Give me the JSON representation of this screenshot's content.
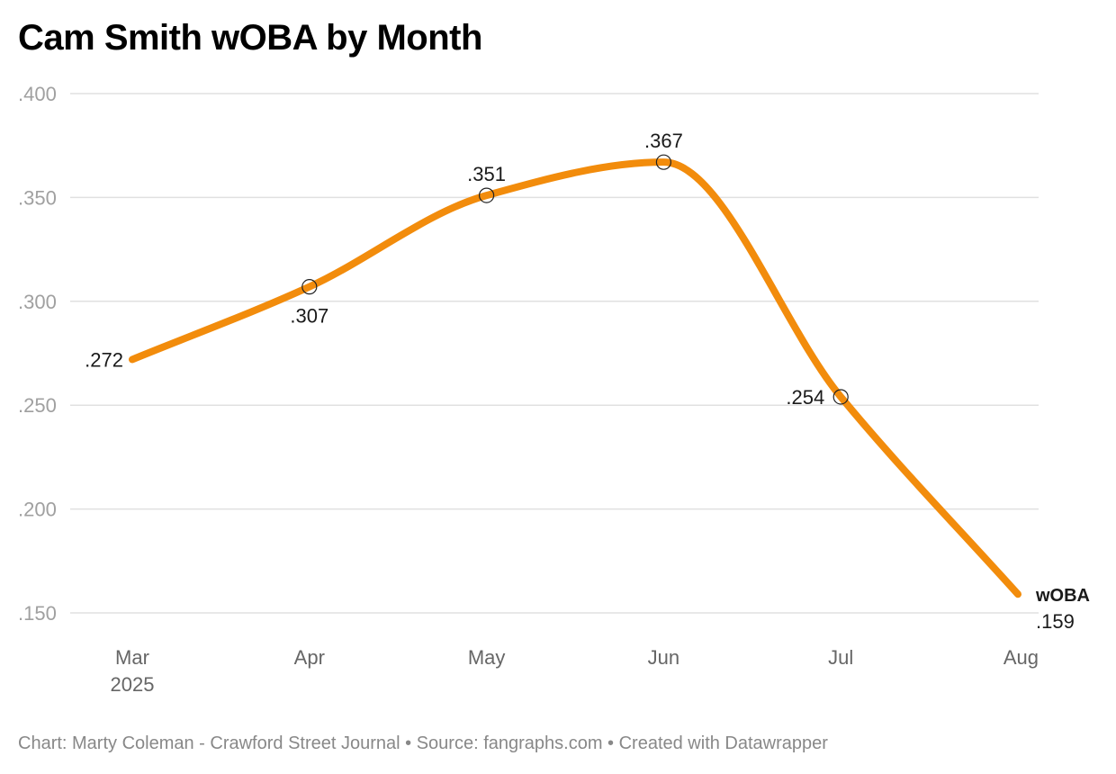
{
  "chart_data": {
    "type": "line",
    "title": "Cam Smith wOBA by Month",
    "categories": [
      "Mar",
      "Apr",
      "May",
      "Jun",
      "Jul",
      "Aug"
    ],
    "year_label": "2025",
    "series": [
      {
        "name": "wOBA",
        "values": [
          0.272,
          0.307,
          0.351,
          0.367,
          0.254,
          0.159
        ],
        "labels": [
          ".272",
          ".307",
          ".351",
          ".367",
          ".254",
          ".159"
        ]
      }
    ],
    "y_ticks": [
      0.15,
      0.2,
      0.25,
      0.3,
      0.35,
      0.4
    ],
    "y_tick_labels": [
      ".150",
      ".200",
      ".250",
      ".300",
      ".350",
      ".400"
    ],
    "ylim": [
      0.15,
      0.4
    ],
    "xlabel": "",
    "ylabel": "",
    "grid": true,
    "line_color": "#f28c0c"
  },
  "footer": "Chart: Marty Coleman - Crawford Street Journal • Source: fangraphs.com • Created with Datawrapper"
}
